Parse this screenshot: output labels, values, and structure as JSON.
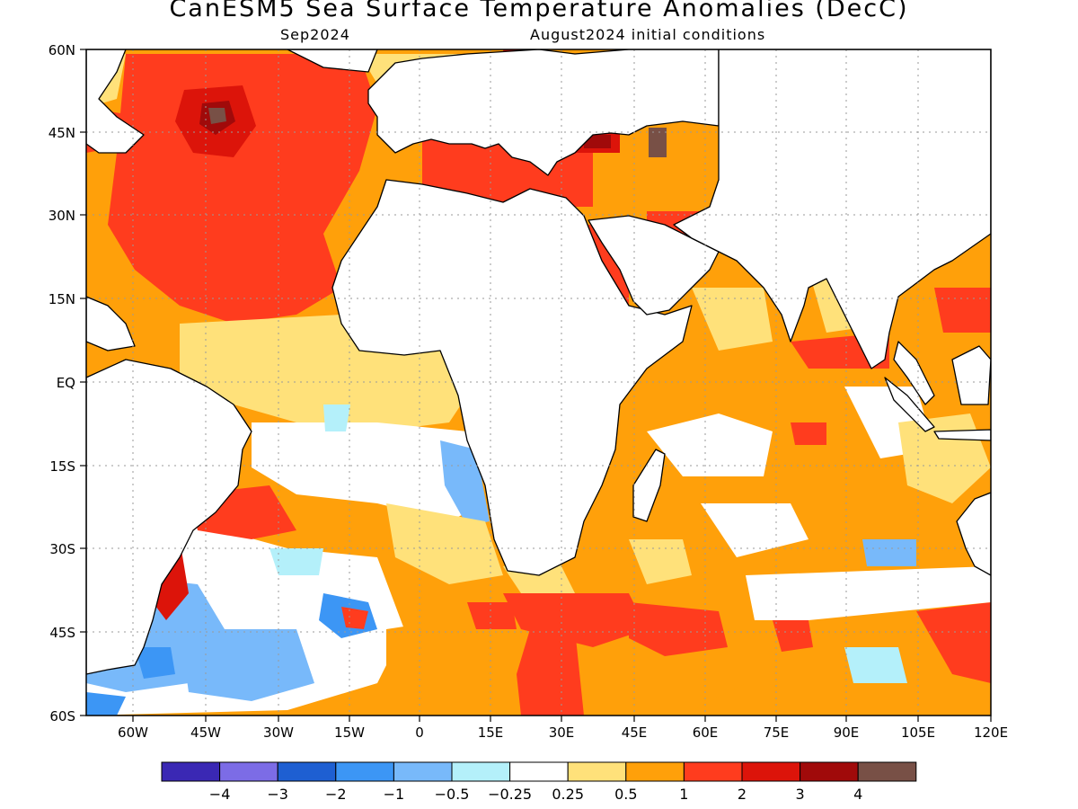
{
  "title": "CanESM5 Sea Surface Temperature Anomalies (DecC)",
  "subtitle_left": "Sep2024",
  "subtitle_right": "August2024 initial conditions",
  "axes": {
    "lon_ticks": [
      "60W",
      "45W",
      "30W",
      "15W",
      "0",
      "15E",
      "30E",
      "45E",
      "60E",
      "75E",
      "90E",
      "105E",
      "120E"
    ],
    "lat_ticks": [
      "60N",
      "45N",
      "30N",
      "15N",
      "EQ",
      "15S",
      "30S",
      "45S",
      "60S"
    ]
  },
  "colorbar": {
    "colors": [
      "#3a28b4",
      "#7c6ce6",
      "#1e5fd2",
      "#3c96f5",
      "#78b9fa",
      "#b4f0fa",
      "#ffffff",
      "#ffe17a",
      "#ffa00a",
      "#ff3c1e",
      "#dc140a",
      "#a00a0a",
      "#785046"
    ],
    "labels": [
      "−4",
      "−3",
      "−2",
      "−1",
      "−0.5",
      "−0.25",
      "0.25",
      "0.5",
      "1",
      "2",
      "3",
      "4"
    ]
  },
  "colors": {
    "land": "#ffffff",
    "coast": "#000000",
    "grid": "#9a9a9a"
  }
}
